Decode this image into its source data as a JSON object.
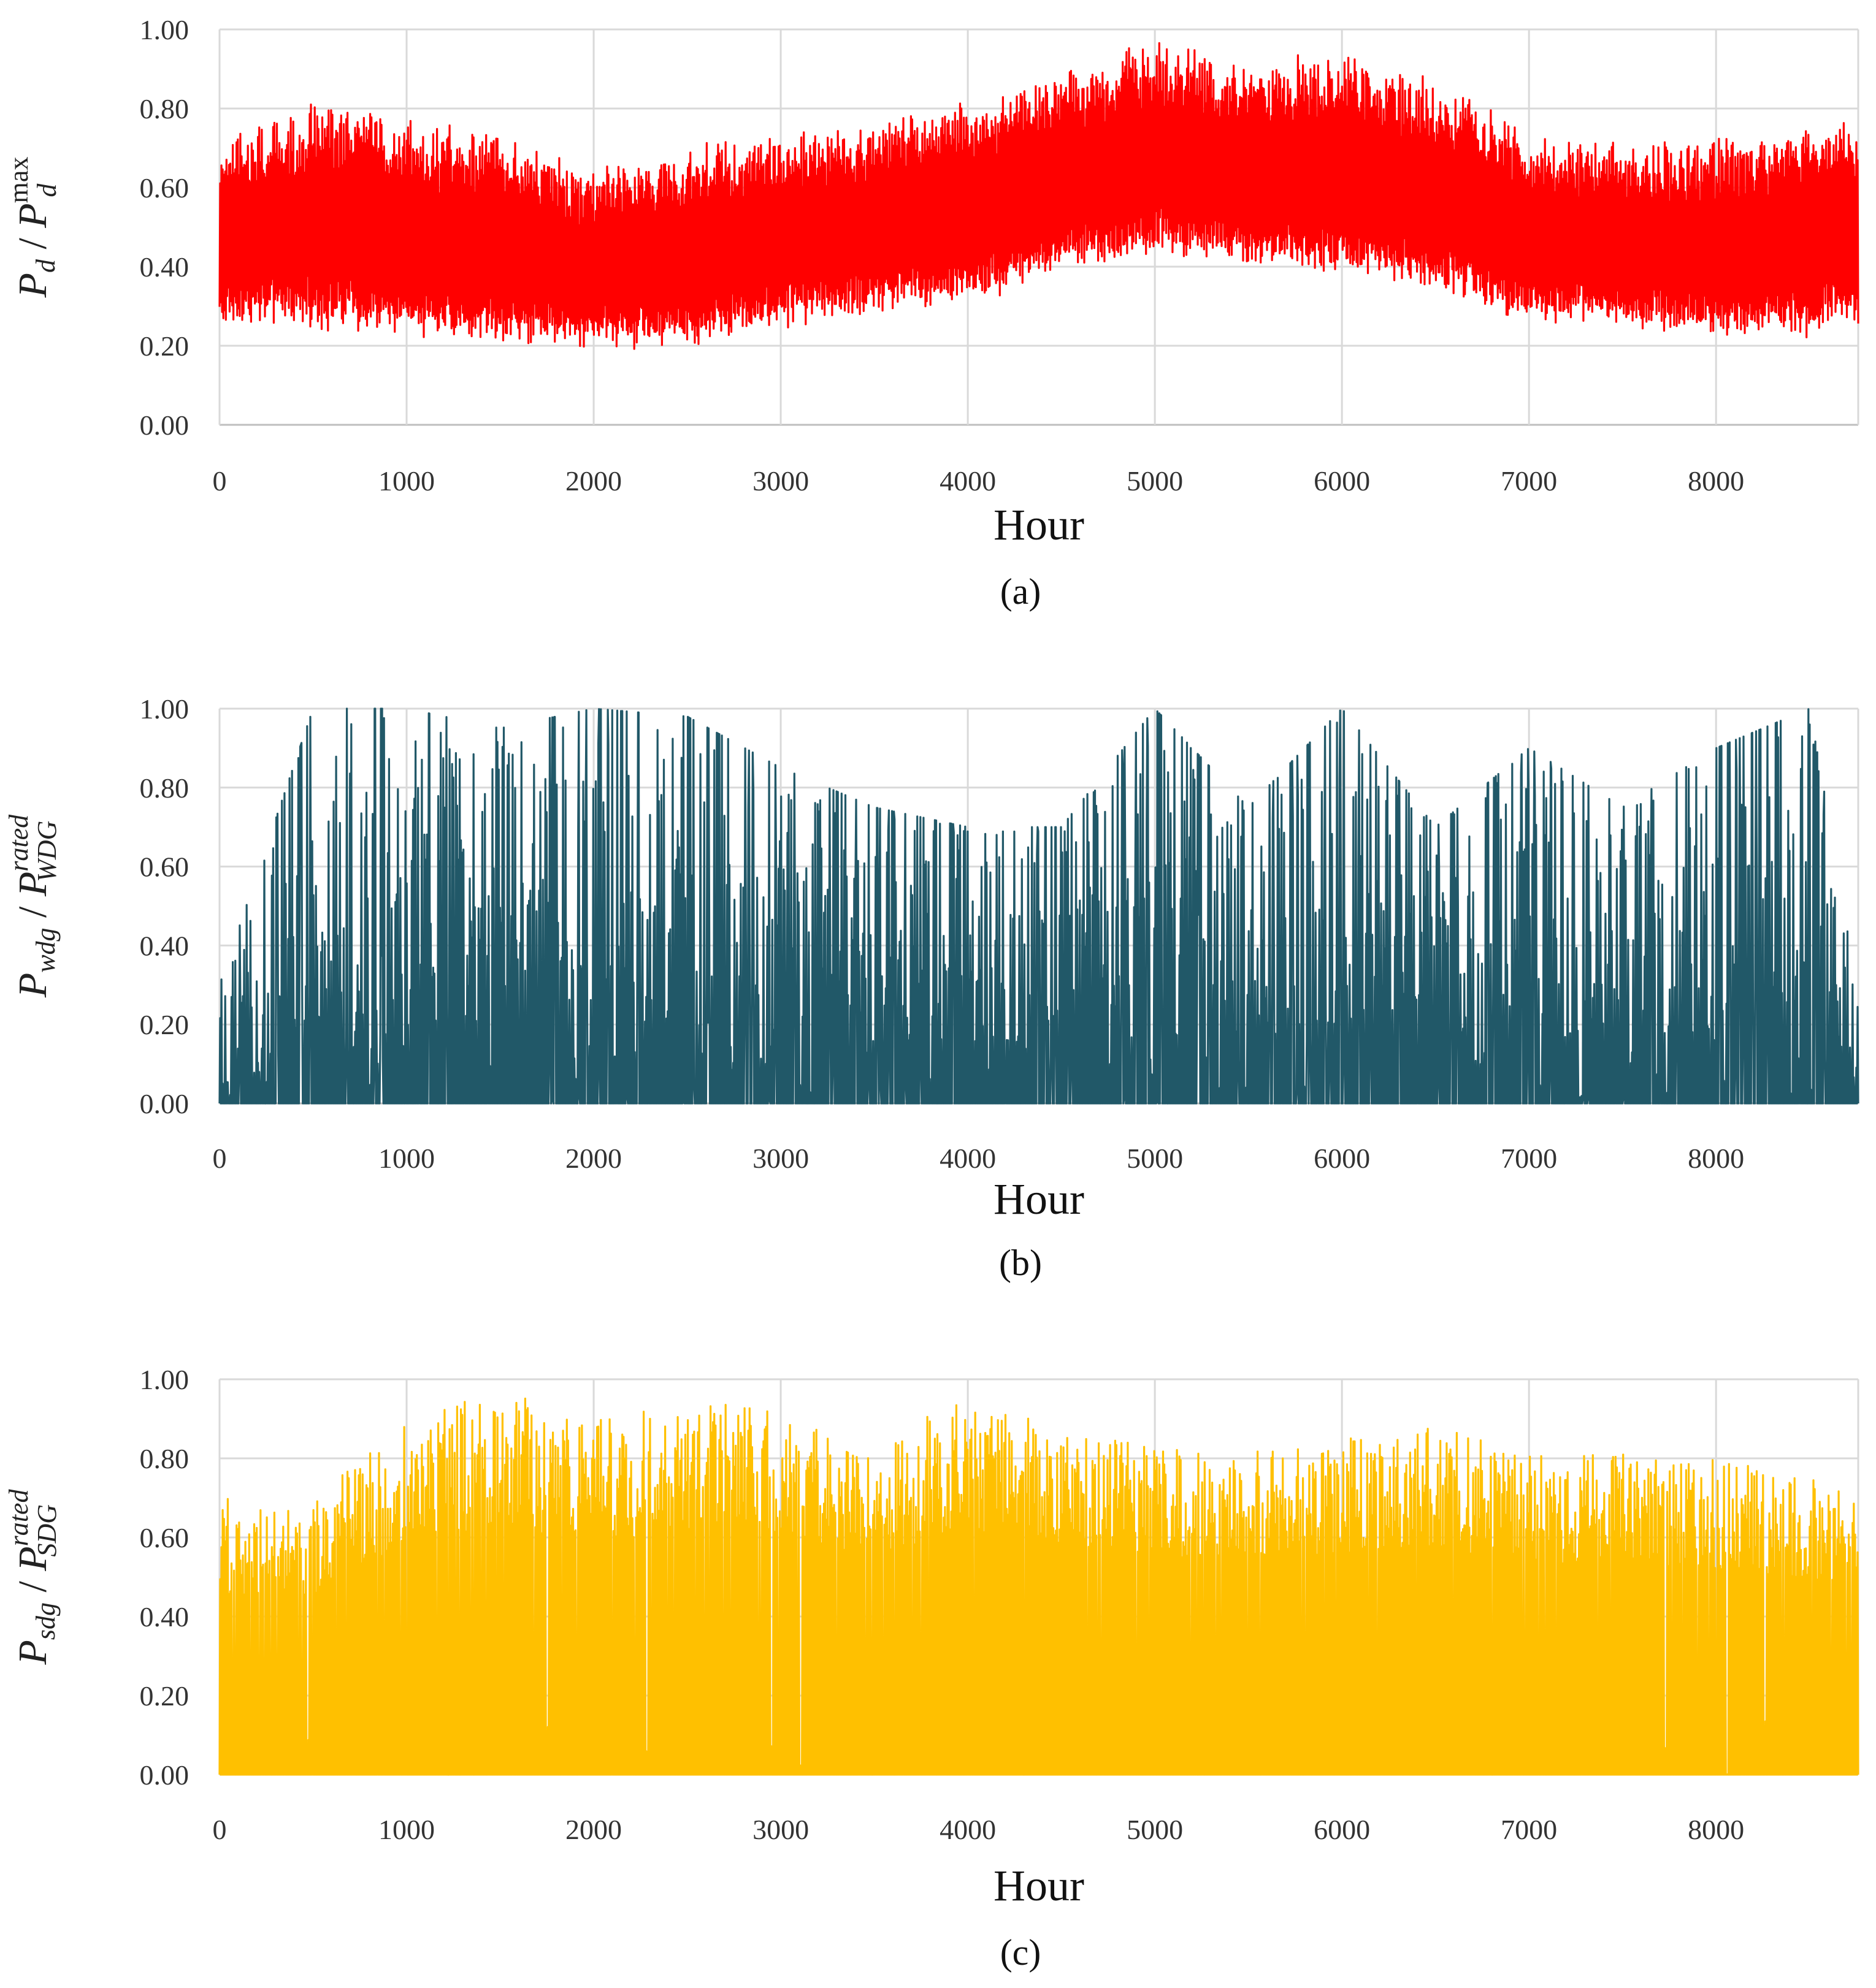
{
  "figure": {
    "panels": [
      {
        "id": "a",
        "panel_label": "(a)",
        "ylabel": {
          "base": "P",
          "sub": "d",
          "sep": " / ",
          "base2": "P",
          "sub2": "d",
          "sup2": "max",
          "sup2_italic": false,
          "sub2_italic": true
        },
        "color": "#FF0000"
      },
      {
        "id": "b",
        "panel_label": "(b)",
        "ylabel": {
          "base": "P",
          "sub": "wdg",
          "sep": " / ",
          "base2": "P",
          "sub2": "WDG",
          "sup2": "rated",
          "sup2_italic": true,
          "sub2_italic": true
        },
        "color": "#215868"
      },
      {
        "id": "c",
        "panel_label": "(c)",
        "ylabel": {
          "base": "P",
          "sub": "sdg",
          "sep": " / ",
          "base2": "P",
          "sub2": "SDG",
          "sup2": "rated",
          "sup2_italic": true,
          "sub2_italic": true
        },
        "color": "#FFC000"
      }
    ]
  },
  "chart_data": [
    {
      "type": "area",
      "panel": "(a)",
      "title": "",
      "xlabel": "Hour",
      "ylabel": "P_d / P_d^max",
      "xlim": [
        0,
        8760
      ],
      "ylim": [
        0,
        1
      ],
      "xticks": [
        "0",
        "1000",
        "2000",
        "3000",
        "4000",
        "5000",
        "6000",
        "7000",
        "8000"
      ],
      "yticks": [
        "0.00",
        "0.20",
        "0.40",
        "0.60",
        "0.80",
        "1.00"
      ],
      "grid": true,
      "color": "#FF0000",
      "description_series": "hourly normalized demand, oscillating daily between lower and upper envelope",
      "envelope_x": [
        0,
        500,
        1000,
        1500,
        2000,
        2500,
        3000,
        3500,
        4000,
        4500,
        5000,
        5500,
        6000,
        6500,
        7000,
        7500,
        8000,
        8500,
        8760
      ],
      "upper": [
        0.7,
        0.8,
        0.75,
        0.72,
        0.62,
        0.68,
        0.72,
        0.75,
        0.8,
        0.88,
        0.95,
        0.9,
        0.92,
        0.85,
        0.72,
        0.7,
        0.7,
        0.75,
        0.74
      ],
      "lower": [
        0.27,
        0.27,
        0.24,
        0.23,
        0.22,
        0.22,
        0.27,
        0.3,
        0.33,
        0.4,
        0.45,
        0.42,
        0.4,
        0.36,
        0.28,
        0.26,
        0.24,
        0.25,
        0.27
      ]
    },
    {
      "type": "area",
      "panel": "(b)",
      "title": "",
      "xlabel": "Hour",
      "ylabel": "P_wdg / P_WDG^rated",
      "xlim": [
        0,
        8760
      ],
      "ylim": [
        0,
        1
      ],
      "xticks": [
        "0",
        "1000",
        "2000",
        "3000",
        "4000",
        "5000",
        "6000",
        "7000",
        "8000"
      ],
      "yticks": [
        "0.00",
        "0.20",
        "0.40",
        "0.60",
        "0.80",
        "1.00"
      ],
      "grid": true,
      "color": "#215868",
      "description_series": "hourly normalized wind generation, highly intermittent between 0 and 1",
      "envelope_x": [
        0,
        500,
        1000,
        1500,
        2000,
        2500,
        3000,
        3500,
        4000,
        4500,
        5000,
        5500,
        6000,
        6500,
        7000,
        7500,
        8000,
        8500,
        8760
      ],
      "upper": [
        0.3,
        1.0,
        1.0,
        0.95,
        1.0,
        0.98,
        0.85,
        0.75,
        0.7,
        0.7,
        1.0,
        0.75,
        1.0,
        0.7,
        0.9,
        0.75,
        0.9,
        1.0,
        0.3
      ],
      "lower": [
        0,
        0,
        0,
        0,
        0,
        0,
        0,
        0,
        0,
        0,
        0,
        0,
        0,
        0,
        0,
        0,
        0,
        0,
        0
      ]
    },
    {
      "type": "area",
      "panel": "(c)",
      "title": "",
      "xlabel": "Hour",
      "ylabel": "P_sdg / P_SDG^rated",
      "xlim": [
        0,
        8760
      ],
      "ylim": [
        0,
        1
      ],
      "xticks": [
        "0",
        "1000",
        "2000",
        "3000",
        "4000",
        "5000",
        "6000",
        "7000",
        "8000"
      ],
      "yticks": [
        "0.00",
        "0.20",
        "0.40",
        "0.60",
        "0.80",
        "1.00"
      ],
      "grid": true,
      "color": "#FFC000",
      "description_series": "hourly normalized solar generation, daily peaks between 0 and 1",
      "envelope_x": [
        0,
        500,
        1000,
        1500,
        2000,
        2500,
        3000,
        3500,
        4000,
        4500,
        5000,
        5500,
        6000,
        6500,
        7000,
        7500,
        8000,
        8500,
        8760
      ],
      "upper": [
        0.7,
        0.7,
        0.9,
        0.97,
        0.9,
        0.95,
        0.92,
        0.85,
        0.95,
        0.88,
        0.85,
        0.82,
        0.85,
        0.88,
        0.82,
        0.82,
        0.8,
        0.75,
        0.7
      ],
      "lower": [
        0,
        0,
        0,
        0,
        0,
        0,
        0,
        0,
        0,
        0,
        0,
        0,
        0,
        0,
        0,
        0,
        0,
        0,
        0
      ]
    }
  ]
}
